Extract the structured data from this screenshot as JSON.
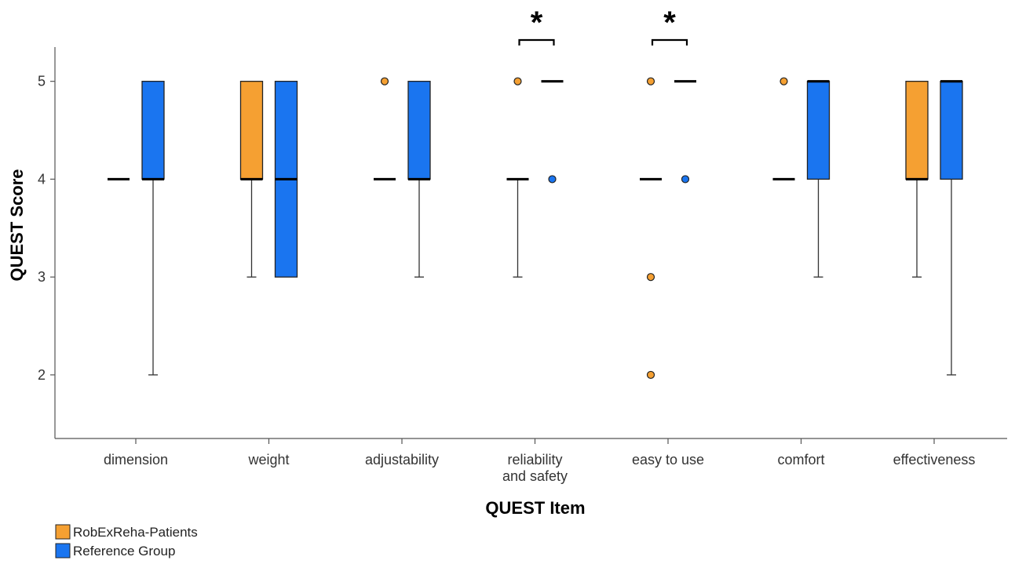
{
  "chart_data": {
    "type": "boxplot",
    "xlabel": "QUEST Item",
    "ylabel": "QUEST Score",
    "ylim": [
      1.35,
      5.35
    ],
    "yticks": [
      2,
      3,
      4,
      5
    ],
    "categories": [
      {
        "lines": [
          "dimension"
        ]
      },
      {
        "lines": [
          "weight"
        ]
      },
      {
        "lines": [
          "adjustability"
        ]
      },
      {
        "lines": [
          "reliability",
          "and safety"
        ]
      },
      {
        "lines": [
          "easy to use"
        ]
      },
      {
        "lines": [
          "comfort"
        ]
      },
      {
        "lines": [
          "effectiveness"
        ]
      }
    ],
    "series": [
      {
        "name": "RobExReha-Patients",
        "color": "#f5a032",
        "outlier_color": "#f5a032",
        "boxes": [
          {
            "q1": 4,
            "median": 4,
            "q3": 4,
            "whisker_low": 4,
            "whisker_high": 4,
            "outliers": []
          },
          {
            "q1": 4,
            "median": 4,
            "q3": 5,
            "whisker_low": 3,
            "whisker_high": 5,
            "outliers": []
          },
          {
            "q1": 4,
            "median": 4,
            "q3": 4,
            "whisker_low": 4,
            "whisker_high": 4,
            "outliers": [
              5
            ]
          },
          {
            "q1": 4,
            "median": 4,
            "q3": 4,
            "whisker_low": 3,
            "whisker_high": 4,
            "outliers": [
              5
            ]
          },
          {
            "q1": 4,
            "median": 4,
            "q3": 4,
            "whisker_low": 4,
            "whisker_high": 4,
            "outliers": [
              5,
              3,
              2
            ]
          },
          {
            "q1": 4,
            "median": 4,
            "q3": 4,
            "whisker_low": 4,
            "whisker_high": 4,
            "outliers": [
              5
            ]
          },
          {
            "q1": 4,
            "median": 4,
            "q3": 5,
            "whisker_low": 3,
            "whisker_high": 5,
            "outliers": []
          }
        ]
      },
      {
        "name": "Reference Group",
        "color": "#1a75f0",
        "outlier_color": "#1a75f0",
        "boxes": [
          {
            "q1": 4,
            "median": 4,
            "q3": 5,
            "whisker_low": 2,
            "whisker_high": 5,
            "outliers": []
          },
          {
            "q1": 3,
            "median": 4,
            "q3": 5,
            "whisker_low": 3,
            "whisker_high": 5,
            "outliers": []
          },
          {
            "q1": 4,
            "median": 4,
            "q3": 5,
            "whisker_low": 3,
            "whisker_high": 5,
            "outliers": []
          },
          {
            "q1": 5,
            "median": 5,
            "q3": 5,
            "whisker_low": 5,
            "whisker_high": 5,
            "outliers": [
              4
            ]
          },
          {
            "q1": 5,
            "median": 5,
            "q3": 5,
            "whisker_low": 5,
            "whisker_high": 5,
            "outliers": [
              4
            ]
          },
          {
            "q1": 4,
            "median": 5,
            "q3": 5,
            "whisker_low": 3,
            "whisker_high": 5,
            "outliers": []
          },
          {
            "q1": 4,
            "median": 5,
            "q3": 5,
            "whisker_low": 2,
            "whisker_high": 5,
            "outliers": []
          }
        ]
      }
    ],
    "significance": [
      {
        "category_index": 3,
        "label": "*"
      },
      {
        "category_index": 4,
        "label": "*"
      }
    ],
    "legend": {
      "position": "bottom-left"
    },
    "grid": false
  }
}
